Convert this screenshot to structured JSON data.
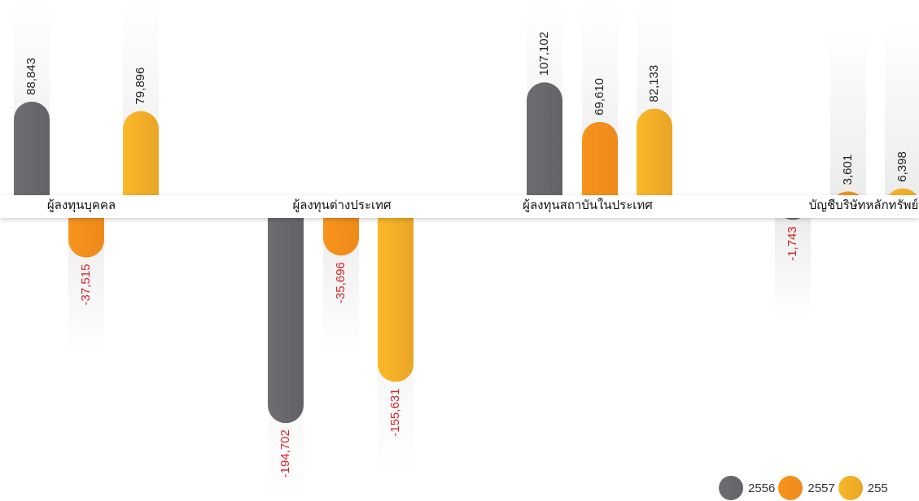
{
  "chart_data": {
    "type": "bar",
    "title": "",
    "xlabel": "",
    "ylabel": "",
    "categories": [
      "ผู้ลงทุนบุคคล",
      "ผู้ลงทุนต่างประเทศ",
      "ผู้ลงทุนสถาบันในประเทศ",
      "บัญชีบริษัทหลักทรัพย์"
    ],
    "series": [
      {
        "name": "2556",
        "values": [
          88843,
          -194702,
          107102,
          -1743
        ]
      },
      {
        "name": "2557",
        "values": [
          -37515,
          -35696,
          69610,
          3601
        ]
      },
      {
        "name": "255",
        "values": [
          79896,
          -155631,
          82133,
          6398
        ]
      }
    ],
    "value_labels": [
      [
        "88,843",
        "-194,702",
        "107,102",
        "-1,743"
      ],
      [
        "-37,515",
        "-35,696",
        "69,610",
        "3,601"
      ],
      [
        "79,896",
        "-155,631",
        "82,133",
        "6,398"
      ]
    ],
    "colors": {
      "series": [
        "#6d6e71",
        "#f7941d",
        "#fbb829"
      ],
      "series_dark": [
        "#626366",
        "#ee8a1a",
        "#e9a526"
      ],
      "positive_label": "#222222",
      "negative_label": "#d2232a",
      "track": "#ececec",
      "baseline": "#ffffff"
    },
    "legend_position": "bottom-right",
    "grid": false
  }
}
